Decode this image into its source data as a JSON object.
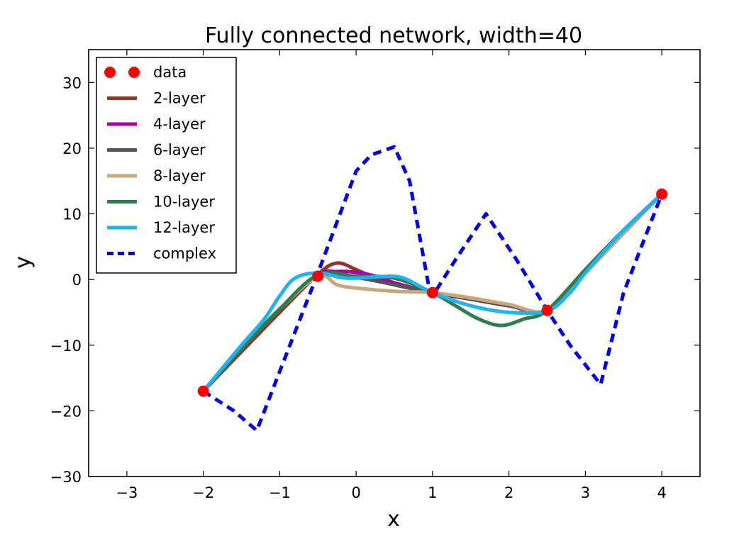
{
  "chart_data": {
    "type": "line",
    "title": "Fully connected network, width=40",
    "xlabel": "x",
    "ylabel": "y",
    "xlim": [
      -3.5,
      4.5
    ],
    "ylim": [
      -30,
      35
    ],
    "xticks": [
      -3,
      -2,
      -1,
      0,
      1,
      2,
      3,
      4
    ],
    "yticks": [
      -30,
      -20,
      -10,
      0,
      10,
      20,
      30
    ],
    "grid": false,
    "legend_position": "top-left",
    "data_points": {
      "name": "data",
      "color": "#ff0000",
      "x": [
        -2,
        -0.5,
        1,
        2.5,
        4
      ],
      "y": [
        -17,
        0.5,
        -2,
        -4.7,
        13
      ]
    },
    "series": [
      {
        "name": "2-layer",
        "color": "#8b3a2a",
        "style": "solid",
        "x": [
          -2,
          -1.5,
          -1,
          -0.5,
          -0.25,
          0,
          0.25,
          0.5,
          1,
          1.5,
          2,
          2.5,
          3,
          3.5,
          4
        ],
        "y": [
          -17,
          -11,
          -5,
          0.8,
          2.5,
          1.5,
          0.2,
          -0.8,
          -2,
          -3,
          -4,
          -4.7,
          1.5,
          7.5,
          13
        ]
      },
      {
        "name": "4-layer",
        "color": "#aa00aa",
        "style": "solid",
        "x": [
          -2,
          -1.5,
          -1,
          -0.5,
          -0.25,
          0,
          0.25,
          0.5,
          1,
          1.5,
          2,
          2.5,
          3,
          3.5,
          4
        ],
        "y": [
          -17,
          -10.5,
          -4.5,
          0.7,
          1.2,
          1.1,
          0.5,
          -0.5,
          -2,
          -3,
          -4,
          -4.7,
          1.5,
          7.5,
          13
        ]
      },
      {
        "name": "6-layer",
        "color": "#555555",
        "style": "solid",
        "x": [
          -2,
          -1.5,
          -1,
          -0.5,
          0,
          0.5,
          1,
          1.5,
          2,
          2.5,
          3,
          3.5,
          4
        ],
        "y": [
          -17,
          -10.5,
          -4.5,
          0.6,
          0.3,
          -0.8,
          -2,
          -3,
          -4,
          -4.7,
          1.5,
          7.5,
          13
        ]
      },
      {
        "name": "8-layer",
        "color": "#c8a87a",
        "style": "solid",
        "x": [
          -2,
          -1.5,
          -1,
          -0.5,
          -0.25,
          0,
          0.5,
          1,
          1.5,
          2,
          2.5,
          3,
          3.5,
          4
        ],
        "y": [
          -17,
          -10.5,
          -4.5,
          0.5,
          -0.8,
          -1.3,
          -1.8,
          -2,
          -2.8,
          -3.8,
          -4.7,
          1,
          7,
          13
        ]
      },
      {
        "name": "10-layer",
        "color": "#2e7d4f",
        "style": "solid",
        "x": [
          -2,
          -1.5,
          -1,
          -0.5,
          0,
          0.5,
          1,
          1.3,
          1.6,
          1.9,
          2.2,
          2.5,
          3,
          3.5,
          4
        ],
        "y": [
          -17,
          -10.5,
          -4.5,
          0.7,
          0.5,
          0.2,
          -2,
          -4,
          -6,
          -7,
          -6,
          -4.7,
          1.5,
          7.5,
          13
        ]
      },
      {
        "name": "12-layer",
        "color": "#1fb4f0",
        "style": "solid",
        "x": [
          -2,
          -1.5,
          -1.2,
          -1,
          -0.8,
          -0.5,
          -0.2,
          0,
          0.3,
          0.6,
          1,
          1.5,
          2,
          2.5,
          2.8,
          3,
          3.5,
          4
        ],
        "y": [
          -17,
          -10,
          -6,
          -2.5,
          0.2,
          1,
          0.3,
          0.2,
          0.4,
          0.3,
          -2,
          -4,
          -5,
          -4.8,
          -2,
          1,
          7.5,
          13
        ]
      },
      {
        "name": "complex",
        "color": "#0000ee",
        "style": "dashed",
        "x": [
          -2,
          -1.6,
          -1.3,
          -1,
          -0.5,
          0,
          0.2,
          0.5,
          0.7,
          0.95,
          1,
          1.3,
          1.7,
          2.1,
          2.5,
          2.8,
          3.2,
          3.5,
          4
        ],
        "y": [
          -17,
          -20,
          -23,
          -14,
          1,
          16.5,
          19,
          20.2,
          15,
          -1,
          -2.5,
          3,
          10,
          3,
          -4.7,
          -10,
          -16,
          -2,
          13
        ]
      }
    ]
  }
}
